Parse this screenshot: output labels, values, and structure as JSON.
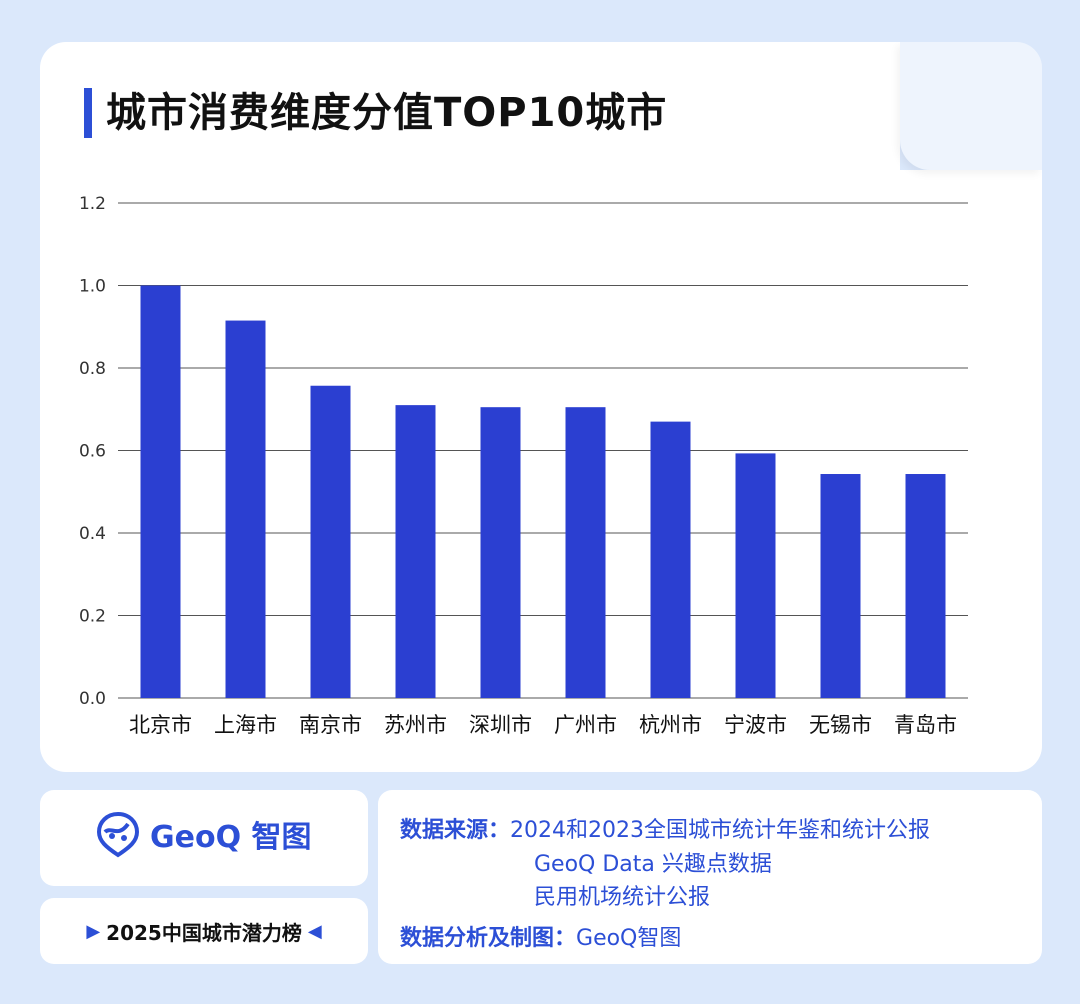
{
  "title": "城市消费维度分值TOP10城市",
  "chart_data": {
    "type": "bar",
    "categories": [
      "北京市",
      "上海市",
      "南京市",
      "苏州市",
      "深圳市",
      "广州市",
      "杭州市",
      "宁波市",
      "无锡市",
      "青岛市"
    ],
    "values": [
      1.0,
      0.915,
      0.757,
      0.71,
      0.705,
      0.705,
      0.67,
      0.593,
      0.543,
      0.543
    ],
    "yticks": [
      "0.0",
      "0.2",
      "0.4",
      "0.6",
      "0.8",
      "1.0",
      "1.2"
    ],
    "ylim": [
      0,
      1.2
    ],
    "bar_color": "#2b3fd1",
    "grid": true
  },
  "logo": {
    "text": "GeoQ 智图",
    "icon": "geoq-logo-icon"
  },
  "ranking": {
    "left_marker": "▶",
    "text": "2025中国城市潜力榜",
    "right_marker": "◀"
  },
  "source": {
    "label": "数据来源：",
    "lines": [
      "2024和2023全国城市统计年鉴和统计公报",
      "GeoQ Data 兴趣点数据",
      "民用机场统计公报"
    ],
    "analysis_label": "数据分析及制图：",
    "analysis_value": "GeoQ智图"
  },
  "colors": {
    "accent": "#2c4fd6",
    "background": "#dbe8fb"
  }
}
